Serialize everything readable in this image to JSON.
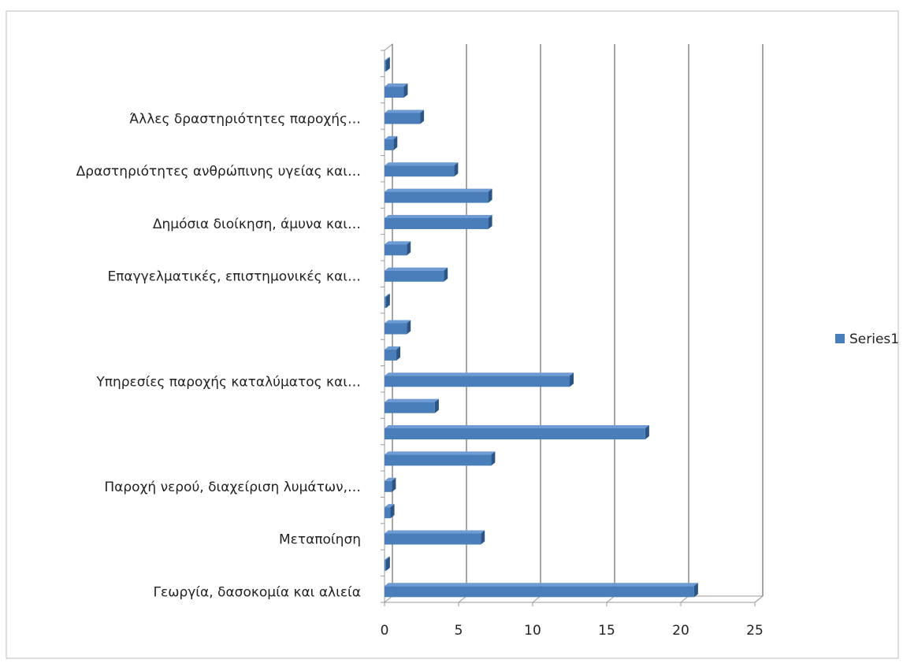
{
  "chart_data": {
    "type": "bar",
    "orientation": "horizontal",
    "categories": [
      "Γεωργία, δασοκομία και αλιεία",
      null,
      "Μεταποίηση",
      null,
      "Παροχή νερού, διαχείριση λυμάτων,…",
      null,
      null,
      null,
      "Υπηρεσίες παροχής καταλύματος και…",
      null,
      null,
      null,
      "Επαγγελματικές, επιστημονικές και…",
      null,
      "Δημόσια διοίκηση, άμυνα και…",
      null,
      "Δραστηριότητες ανθρώπινης υγείας και…",
      null,
      "Άλλες δραστηριότητες παροχής…",
      null,
      null
    ],
    "series": [
      {
        "name": "Series1",
        "color": "#4a7ebb",
        "values": [
          20.9,
          0.1,
          6.5,
          0.4,
          0.5,
          7.2,
          17.6,
          3.4,
          12.5,
          0.8,
          1.5,
          0.1,
          4.0,
          1.5,
          7.0,
          7.0,
          4.7,
          0.6,
          2.4,
          1.3,
          0.1
        ]
      }
    ],
    "xlim": [
      0,
      25
    ],
    "xticks": [
      0,
      5,
      10,
      15,
      20,
      25
    ],
    "grid": true,
    "legend": "right"
  }
}
